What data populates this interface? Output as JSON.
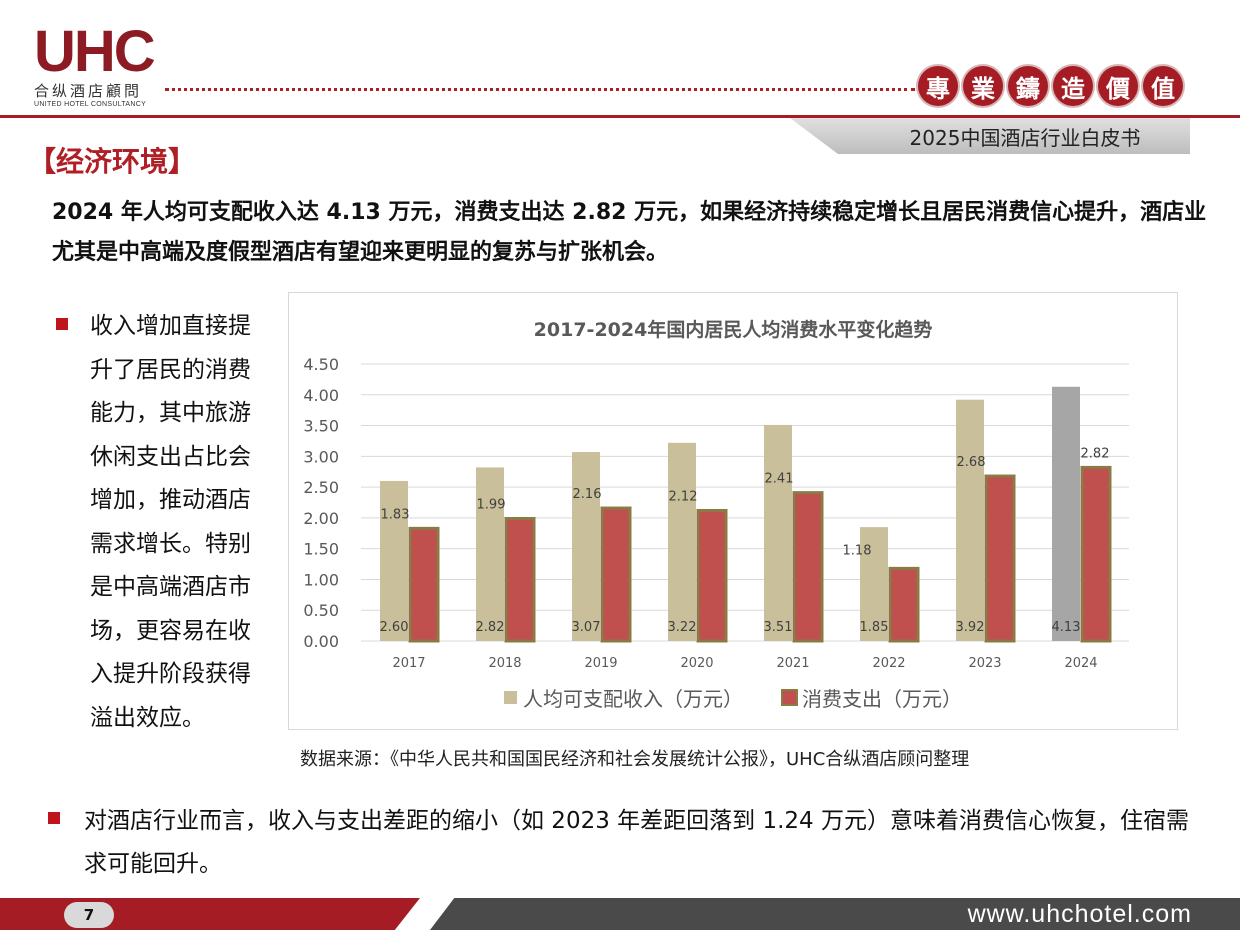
{
  "header": {
    "logo_mark": "UHC",
    "logo_cn": "合纵酒店顧問",
    "logo_en": "UNITED HOTEL CONSULTANCY",
    "seals": [
      "專",
      "業",
      "鑄",
      "造",
      "價",
      "值"
    ],
    "whitepaper_title": "2025中国酒店行业白皮书"
  },
  "section_title": "【经济环境】",
  "lead_text": "2024 年人均可支配收入达 4.13 万元，消费支出达 2.82 万元，如果经济持续稳定增长且居民消费信心提升，酒店业尤其是中高端及度假型酒店有望迎来更明显的复苏与扩张机会。",
  "left_bullet": "收入增加直接提升了居民的消费能力，其中旅游休闲支出占比会增加，推动酒店需求增长。特别是中高端酒店市场，更容易在收入提升阶段获得溢出效应。",
  "source_note": "数据来源：《中华人民共和国国民经济和社会发展统计公报》，UHC合纵酒店顾问整理",
  "bottom_bullet": "对酒店行业而言，收入与支出差距的缩小（如 2023 年差距回落到 1.24 万元）意味着消费信心恢复，住宿需求可能回升。",
  "footer": {
    "page_number": "7",
    "url": "www.uhchotel.com"
  },
  "colors": {
    "brand_red": "#a51c24",
    "income_bar": "#c9bf9a",
    "income_bar_highlight": "#a6a6a6",
    "spending_bar": "#c0504d",
    "spending_border": "#8c7a46"
  },
  "chart_data": {
    "type": "bar",
    "title": "2017-2024年国内居民人均消费水平变化趋势",
    "categories": [
      "2017",
      "2018",
      "2019",
      "2020",
      "2021",
      "2022",
      "2023",
      "2024"
    ],
    "series": [
      {
        "name": "人均可支配收入（万元）",
        "values": [
          2.6,
          2.82,
          3.07,
          3.22,
          3.51,
          1.85,
          3.92,
          4.13
        ],
        "labels": [
          "2.60",
          "2.82",
          "3.07",
          "3.22",
          "3.51",
          "1.85",
          "3.92",
          "4.13"
        ]
      },
      {
        "name": "消费支出（万元）",
        "values": [
          1.83,
          1.99,
          2.16,
          2.12,
          2.41,
          1.18,
          2.68,
          2.82
        ],
        "labels": [
          "1.83",
          "1.99",
          "2.16",
          "2.12",
          "2.41",
          "1.18",
          "2.68",
          "2.82"
        ]
      }
    ],
    "ylim": [
      0,
      4.5
    ],
    "yticks": [
      "0.00",
      "0.50",
      "1.00",
      "1.50",
      "2.00",
      "2.50",
      "3.00",
      "3.50",
      "4.00",
      "4.50"
    ],
    "grid": true,
    "legend": "bottom"
  }
}
